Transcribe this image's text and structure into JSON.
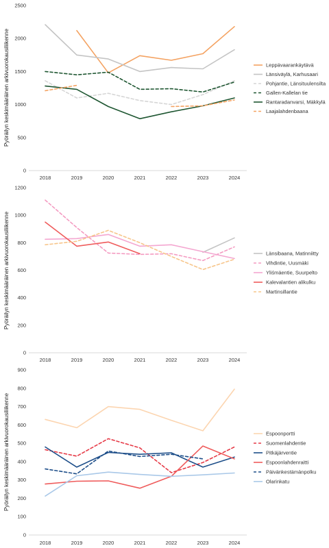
{
  "chart_data": [
    {
      "type": "line",
      "title": "",
      "xlabel": "",
      "ylabel": "Pyöräilyn keskimääräinen arkivuorokausiliikenne",
      "x": [
        "2018",
        "2019",
        "2020",
        "2021",
        "2022",
        "2023",
        "2024"
      ],
      "ylim": [
        0,
        2500
      ],
      "yticks": [
        0,
        500,
        1000,
        1500,
        2000,
        2500
      ],
      "grid": false,
      "legend": "right",
      "series": [
        {
          "name": "Leppävaarankäytävä",
          "color": "#f4a261",
          "dash": "solid",
          "values": [
            null,
            2120,
            1480,
            1740,
            1670,
            1770,
            2180
          ]
        },
        {
          "name": "Länsiväylä, Karhusaari",
          "color": "#c4c4c4",
          "dash": "solid",
          "values": [
            2210,
            1750,
            1690,
            1500,
            1560,
            1540,
            1830
          ]
        },
        {
          "name": "Pohjantie, Länsituulensilta",
          "color": "#d6d6d6",
          "dash": "dashed",
          "values": [
            1360,
            1100,
            1170,
            1060,
            1000,
            1150,
            1360
          ]
        },
        {
          "name": "Gallen-Kallelan tie",
          "color": "#1e5631",
          "dash": "dashed",
          "values": [
            1500,
            1450,
            1490,
            1230,
            1240,
            1190,
            1340
          ]
        },
        {
          "name": "Rantaradanvarsi, Mäkkylä",
          "color": "#1e5631",
          "dash": "solid",
          "values": [
            1280,
            1230,
            970,
            785,
            890,
            980,
            1100
          ]
        },
        {
          "name": "Laajalahdenbaana",
          "color": "#f4a261",
          "dash": "dashed",
          "values": [
            1210,
            1290,
            null,
            null,
            970,
            980,
            1070
          ]
        }
      ]
    },
    {
      "type": "line",
      "title": "",
      "xlabel": "",
      "ylabel": "Pyöräilyn keskimääräinen arkivuorokausiliikenne",
      "x": [
        "2018",
        "2019",
        "2020",
        "2021",
        "2022",
        "2023",
        "2024"
      ],
      "ylim": [
        0,
        1200
      ],
      "yticks": [
        0,
        200,
        400,
        600,
        800,
        1000,
        1200
      ],
      "grid": false,
      "legend": "right",
      "series": [
        {
          "name": "Länsibaana, Matinniitty",
          "color": "#c4c4c4",
          "dash": "solid",
          "values": [
            null,
            null,
            null,
            null,
            null,
            730,
            835
          ]
        },
        {
          "name": "Vihdintie, Uusmäki",
          "color": "#f49ac1",
          "dash": "dashed",
          "values": [
            1110,
            910,
            725,
            715,
            720,
            670,
            770
          ]
        },
        {
          "name": "Yliśmäentie, Suurpelto",
          "color": "#f4a6d0",
          "dash": "solid",
          "values": [
            825,
            830,
            860,
            775,
            785,
            735,
            685
          ]
        },
        {
          "name": "Kalevalantien alikulku",
          "color": "#ef5b5b",
          "dash": "solid",
          "values": [
            950,
            775,
            805,
            720,
            null,
            null,
            null
          ]
        },
        {
          "name": "Martinsillantie",
          "color": "#f7c58a",
          "dash": "dashed",
          "values": [
            785,
            810,
            890,
            800,
            700,
            605,
            680
          ]
        }
      ]
    },
    {
      "type": "line",
      "title": "",
      "xlabel": "",
      "ylabel": "Pyöräilyn keskimääräinen arkivuorokausiliikenne",
      "x": [
        "2018",
        "2019",
        "2020",
        "2021",
        "2022",
        "2023",
        "2024"
      ],
      "ylim": [
        0,
        900
      ],
      "yticks": [
        0,
        100,
        200,
        300,
        400,
        500,
        600,
        700,
        800,
        900
      ],
      "grid": false,
      "legend": "right",
      "series": [
        {
          "name": "Espoonportti",
          "color": "#fcd5b0",
          "dash": "solid",
          "values": [
            630,
            585,
            700,
            685,
            625,
            568,
            795
          ]
        },
        {
          "name": "Suomenlahdentie",
          "color": "#e63946",
          "dash": "dashed",
          "values": [
            465,
            430,
            525,
            475,
            340,
            395,
            480
          ]
        },
        {
          "name": "Pitkäjärventie",
          "color": "#1d4e89",
          "dash": "solid",
          "values": [
            480,
            370,
            450,
            440,
            448,
            370,
            425
          ]
        },
        {
          "name": "Espoonlahdenraitti",
          "color": "#ef5b5b",
          "dash": "solid",
          "values": [
            278,
            293,
            295,
            255,
            320,
            485,
            415
          ]
        },
        {
          "name": "Päivänkestämänpolku",
          "color": "#1d4e89",
          "dash": "dashed",
          "values": [
            360,
            333,
            458,
            428,
            440,
            415,
            null
          ]
        },
        {
          "name": "Olarinkatu",
          "color": "#a9c8e8",
          "dash": "solid",
          "values": [
            212,
            323,
            343,
            330,
            320,
            328,
            338
          ]
        }
      ]
    }
  ]
}
